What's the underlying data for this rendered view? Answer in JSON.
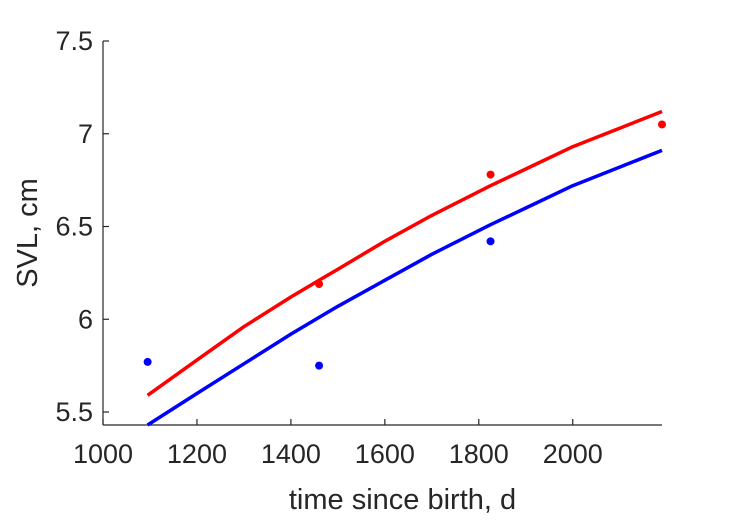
{
  "chart_data": {
    "type": "line",
    "title": "",
    "xlabel": "time since birth, d",
    "ylabel": "SVL, cm",
    "xlim": [
      1000,
      2190
    ],
    "ylim": [
      5.43,
      7.5
    ],
    "xticks": [
      1000,
      1200,
      1400,
      1600,
      1800,
      2000
    ],
    "xtick_labels": [
      "1000",
      "1200",
      "1400",
      "1600",
      "1800",
      "2000"
    ],
    "yticks": [
      5.5,
      6,
      6.5,
      7,
      7.5
    ],
    "ytick_labels": [
      "5.5",
      "6",
      "6.5",
      "7",
      "7.5"
    ],
    "grid": false,
    "legend": "none",
    "series": [
      {
        "color": "#ff0000",
        "kind": "line",
        "x": [
          1095,
          1200,
          1300,
          1400,
          1460,
          1500,
          1600,
          1700,
          1825,
          1900,
          2000,
          2100,
          2190
        ],
        "y": [
          5.59,
          5.78,
          5.96,
          6.12,
          6.21,
          6.27,
          6.42,
          6.56,
          6.72,
          6.81,
          6.93,
          7.03,
          7.12
        ]
      },
      {
        "color": "#0000ff",
        "kind": "line",
        "x": [
          1095,
          1200,
          1300,
          1400,
          1460,
          1500,
          1600,
          1700,
          1825,
          1900,
          2000,
          2100,
          2190
        ],
        "y": [
          5.43,
          5.6,
          5.76,
          5.92,
          6.01,
          6.07,
          6.21,
          6.35,
          6.51,
          6.6,
          6.72,
          6.82,
          6.91
        ]
      },
      {
        "color": "#ff0000",
        "kind": "scatter",
        "x": [
          1460,
          1825,
          2190
        ],
        "y": [
          6.19,
          6.78,
          7.05
        ]
      },
      {
        "color": "#0000ff",
        "kind": "scatter",
        "x": [
          1095,
          1460,
          1825
        ],
        "y": [
          5.77,
          5.75,
          6.42
        ]
      }
    ]
  }
}
